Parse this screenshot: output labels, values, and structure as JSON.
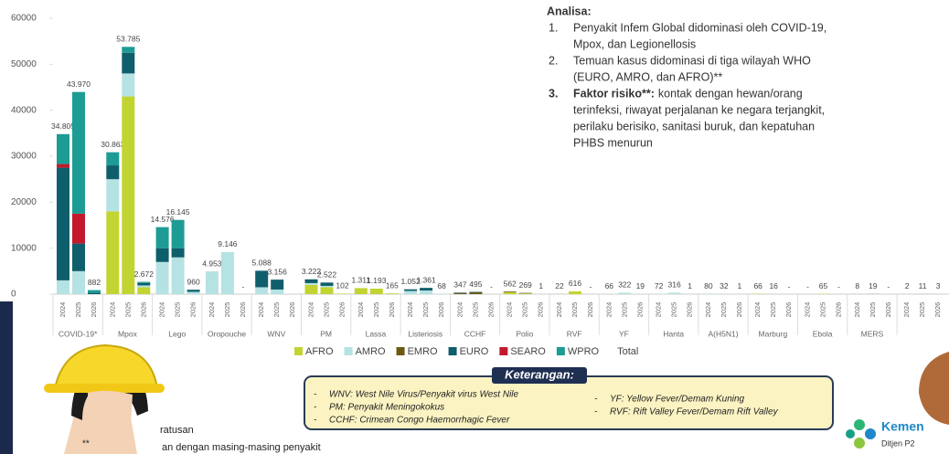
{
  "chart_data": {
    "type": "bar",
    "stacked": true,
    "categories": [
      "2024",
      "2025",
      "2026",
      "2024",
      "2025",
      "2026",
      "2024",
      "2025",
      "2026",
      "2024",
      "2025",
      "2026",
      "2024",
      "2025",
      "2026",
      "2024",
      "2025",
      "2026",
      "2024",
      "2025",
      "2026",
      "2024",
      "2025",
      "2026",
      "2024",
      "2025",
      "2026",
      "2024",
      "2025",
      "2026",
      "2024",
      "2025",
      "2026",
      "2024",
      "2025",
      "2026",
      "2024",
      "2025",
      "2026",
      "2024",
      "2025",
      "2026",
      "2024",
      "2025",
      "2026",
      "2024",
      "2025",
      "2026",
      "2024",
      "2025",
      "2026",
      "2024",
      "2025",
      "2026"
    ],
    "groups": [
      "COVID-19*",
      "Mpox",
      "Lego",
      "Oropouche",
      "WNV",
      "PM",
      "Lassa",
      "Listeriosis",
      "CCHF",
      "Polio",
      "RVF",
      "YF",
      "Hanta",
      "A(H5N1)",
      "Marburg",
      "Ebola",
      "MERS",
      null
    ],
    "series": [
      {
        "name": "AFRO",
        "color": "#c2d431",
        "values": [
          0,
          0,
          0,
          18000,
          43000,
          1500,
          0,
          0,
          0,
          0,
          0,
          0,
          0,
          0,
          0,
          2000,
          1500,
          102,
          1311,
          1193,
          165,
          0,
          0,
          0,
          0,
          0,
          0,
          400,
          150,
          0,
          22,
          616,
          0,
          30,
          22,
          0,
          0,
          0,
          0,
          0,
          0,
          0,
          66,
          16,
          0,
          0,
          65,
          0,
          0,
          0,
          0,
          0,
          0,
          0
        ]
      },
      {
        "name": "AMRO",
        "color": "#b5e2e3",
        "values": [
          3000,
          5000,
          0,
          7000,
          5000,
          400,
          7000,
          8000,
          500,
          4953,
          9146,
          0,
          1500,
          1000,
          0,
          400,
          300,
          0,
          0,
          0,
          0,
          700,
          800,
          68,
          0,
          0,
          0,
          0,
          0,
          0,
          0,
          0,
          0,
          36,
          300,
          19,
          72,
          316,
          1,
          80,
          32,
          0,
          0,
          0,
          0,
          0,
          0,
          0,
          0,
          0,
          0,
          0,
          0,
          0
        ]
      },
      {
        "name": "EMRO",
        "color": "#6b5a14",
        "values": [
          0,
          0,
          0,
          0,
          0,
          0,
          0,
          0,
          0,
          0,
          0,
          0,
          0,
          0,
          0,
          0,
          0,
          0,
          0,
          0,
          0,
          0,
          0,
          0,
          250,
          400,
          0,
          162,
          119,
          1,
          0,
          0,
          0,
          0,
          0,
          0,
          0,
          0,
          0,
          0,
          0,
          0,
          0,
          0,
          0,
          0,
          0,
          0,
          8,
          19,
          0,
          2,
          11,
          3
        ]
      },
      {
        "name": "EURO",
        "color": "#0f5e6b",
        "values": [
          24500,
          6000,
          282,
          3000,
          4500,
          500,
          3000,
          2000,
          460,
          0,
          0,
          0,
          3588,
          2156,
          0,
          822,
          722,
          0,
          0,
          0,
          0,
          352,
          561,
          0,
          97,
          95,
          0,
          0,
          0,
          0,
          0,
          0,
          0,
          0,
          0,
          0,
          0,
          0,
          0,
          0,
          0,
          0,
          0,
          0,
          0,
          0,
          0,
          0,
          0,
          0,
          0,
          0,
          0,
          0
        ]
      },
      {
        "name": "SEARO",
        "color": "#c21a2c",
        "values": [
          800,
          6500,
          0,
          0,
          0,
          0,
          0,
          0,
          0,
          0,
          0,
          0,
          0,
          0,
          0,
          0,
          0,
          0,
          0,
          0,
          0,
          0,
          0,
          0,
          0,
          0,
          0,
          0,
          0,
          0,
          0,
          0,
          0,
          0,
          0,
          0,
          0,
          0,
          0,
          0,
          0,
          1,
          0,
          0,
          0,
          0,
          0,
          0,
          0,
          0,
          0,
          0,
          0,
          0
        ]
      },
      {
        "name": "WPRO",
        "color": "#1d9c95",
        "values": [
          6505,
          26470,
          600,
          2863,
          1285,
          272,
          4576,
          6145,
          0,
          0,
          0,
          0,
          0,
          0,
          0,
          0,
          0,
          0,
          0,
          0,
          0,
          0,
          0,
          0,
          0,
          0,
          0,
          0,
          0,
          0,
          0,
          0,
          0,
          0,
          0,
          0,
          0,
          0,
          0,
          0,
          0,
          0,
          0,
          0,
          0,
          0,
          0,
          0,
          0,
          0,
          0,
          0,
          0,
          0
        ]
      }
    ],
    "total": {
      "name": "Total",
      "values": [
        34805,
        43970,
        882,
        30863,
        53785,
        2672,
        14576,
        16145,
        960,
        4953,
        9146,
        0,
        5088,
        3156,
        null,
        3222,
        2522,
        102,
        1311,
        1193,
        165,
        1052,
        1361,
        68,
        347,
        495,
        0,
        562,
        269,
        1,
        22,
        616,
        0,
        66,
        322,
        19,
        72,
        316,
        1,
        80,
        32,
        1,
        66,
        16,
        0,
        0,
        65,
        0,
        8,
        19,
        0,
        2,
        11,
        3
      ],
      "value_labels": [
        "34.805",
        "43.970",
        "882",
        "30.863",
        "53.785",
        "2.672",
        "14.576",
        "16.145",
        "960",
        "4.953",
        "9.146",
        "-",
        "5.088",
        "3.156",
        null,
        "3.222",
        "2.522",
        "102",
        "1.311",
        "1.193",
        "165",
        "1.052",
        "1.361",
        "68",
        "347",
        "495",
        "-",
        "562",
        "269",
        "1",
        "22",
        "616",
        "-",
        "66",
        "322",
        "19",
        "72",
        "316",
        "1",
        "80",
        "32",
        "1",
        "66",
        "16",
        "-",
        "-",
        "65",
        "-",
        "8",
        "19",
        "-",
        "2",
        "11",
        "3"
      ]
    },
    "ylim": [
      0,
      60000
    ],
    "yticks": [
      0,
      10000,
      20000,
      30000,
      40000,
      50000,
      60000
    ],
    "grid": false
  },
  "analysis": {
    "title": "Analisa:",
    "items": [
      {
        "number": "1.",
        "lines": [
          "Penyakit Infem Global didominasi oleh COVID-19,",
          "Mpox, dan Legionellosis"
        ]
      },
      {
        "number": "2.",
        "lines": [
          "Temuan kasus didominasi di tiga wilayah WHO",
          "(EURO, AMRO, dan AFRO)**"
        ]
      },
      {
        "number": "3.",
        "bold": "Faktor risiko**:",
        "lines": [
          "kontak dengan hewan/orang",
          "terinfeksi, riwayat perjalanan ke negara terjangkit,",
          "perilaku berisiko, sanitasi buruk, dan kepatuhan",
          "PHBS menurun"
        ]
      }
    ]
  },
  "legend_box": {
    "title": "Keterangan:",
    "left": [
      "WNV: West Nile Virus/Penyakit virus West Nile",
      "PM: Penyakit Meningokokus",
      "CCHF: Crimean Congo Haemorrhagic Fever"
    ],
    "right": [
      "YF: Yellow Fever/Demam Kuning",
      "RVF: Rift Valley Fever/Demam Rift Valley"
    ]
  },
  "footer": {
    "note_mark": "**",
    "note_line1": "ratusan",
    "note_line2": "an dengan masing-masing penyakit",
    "logo_title": "Kemen",
    "logo_subtitle": "Ditjen P2"
  }
}
